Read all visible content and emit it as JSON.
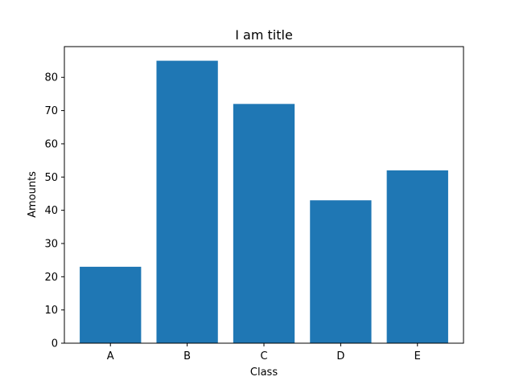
{
  "chart_data": {
    "type": "bar",
    "title": "I am title",
    "xlabel": "Class",
    "ylabel": "Amounts",
    "categories": [
      "A",
      "B",
      "C",
      "D",
      "E"
    ],
    "values": [
      23,
      85,
      72,
      43,
      52
    ],
    "ylim": [
      0,
      89.25
    ],
    "yticks": [
      0,
      10,
      20,
      30,
      40,
      50,
      60,
      70,
      80
    ],
    "grid": false,
    "bar_color": "#1f77b4"
  }
}
